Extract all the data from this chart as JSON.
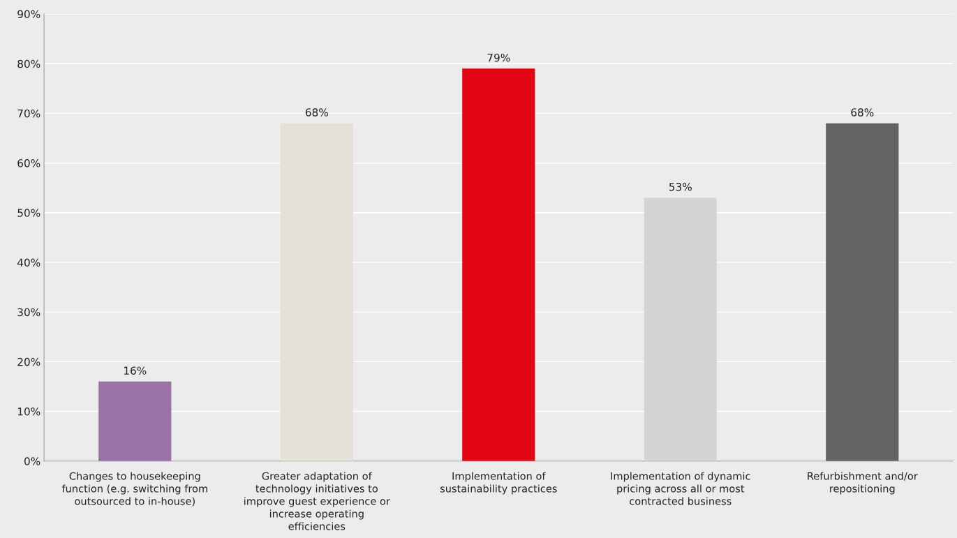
{
  "chart_data": {
    "type": "bar",
    "categories": [
      "Changes to housekeeping function (e.g. switching from outsourced to in-house)",
      "Greater adaptation of technology initiatives to improve guest experience or increase operating efficiencies",
      "Implementation of sustainability practices",
      "Implementation of dynamic pricing across all or most contracted business",
      "Refurbishment and/or repositioning"
    ],
    "values": [
      16,
      68,
      79,
      53,
      68
    ],
    "colors": [
      "#9b72a8",
      "#e5e0d8",
      "#e30613",
      "#d4d4d6",
      "#636366"
    ],
    "value_labels": [
      "16%",
      "68%",
      "79%",
      "53%",
      "68%"
    ],
    "ylim": [
      0,
      90
    ],
    "yticks": [
      {
        "value": 0,
        "label": "0%"
      },
      {
        "value": 10,
        "label": "10%"
      },
      {
        "value": 20,
        "label": "20%"
      },
      {
        "value": 30,
        "label": "30%"
      },
      {
        "value": 40,
        "label": "40%"
      },
      {
        "value": 50,
        "label": "50%"
      },
      {
        "value": 60,
        "label": "60%"
      },
      {
        "value": 70,
        "label": "70%"
      },
      {
        "value": 80,
        "label": "80%"
      },
      {
        "value": 90,
        "label": "90%"
      }
    ],
    "grid": "y",
    "legend": false
  }
}
